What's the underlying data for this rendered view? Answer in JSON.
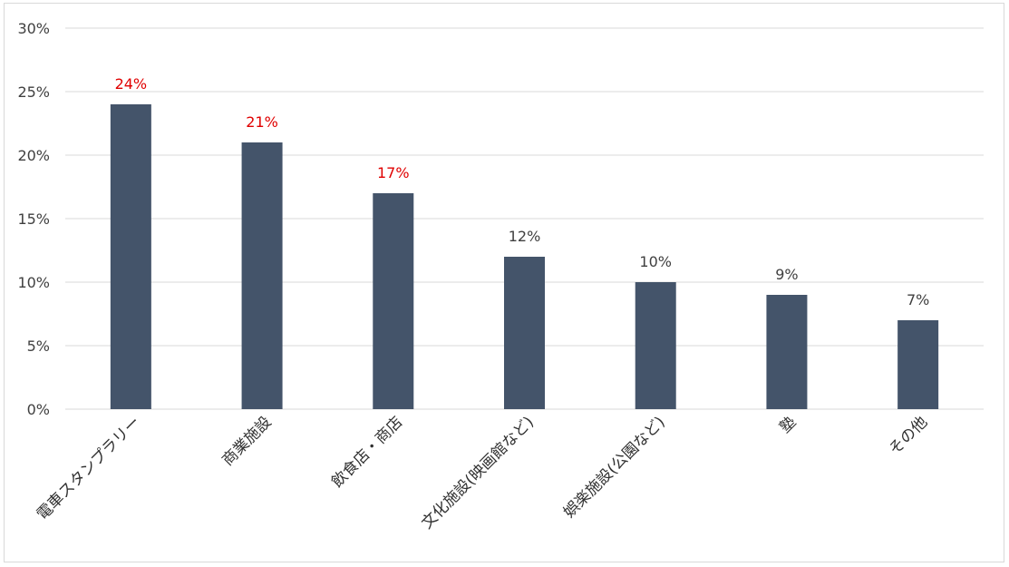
{
  "chart_data": {
    "type": "bar",
    "categories": [
      "電車スタンプラリー",
      "商業施設",
      "飲食店・商店",
      "文化施設(映画館など)",
      "娯楽施設(公園など)",
      "塾",
      "その他"
    ],
    "values": [
      24,
      21,
      17,
      12,
      10,
      9,
      7
    ],
    "data_labels": [
      "24%",
      "21%",
      "17%",
      "12%",
      "10%",
      "9%",
      "7%"
    ],
    "highlighted_labels": [
      true,
      true,
      true,
      false,
      false,
      false,
      false
    ],
    "ylim": [
      0,
      30
    ],
    "yticks": [
      0,
      5,
      10,
      15,
      20,
      25,
      30
    ],
    "ytick_labels": [
      "0%",
      "5%",
      "10%",
      "15%",
      "20%",
      "25%",
      "30%"
    ],
    "title": "",
    "xlabel": "",
    "ylabel": "",
    "grid": true,
    "legend": "none",
    "colors": {
      "bar": "#44546a",
      "label_highlight": "#e00000",
      "label_normal": "#404040",
      "grid": "#d9d9d9"
    }
  }
}
